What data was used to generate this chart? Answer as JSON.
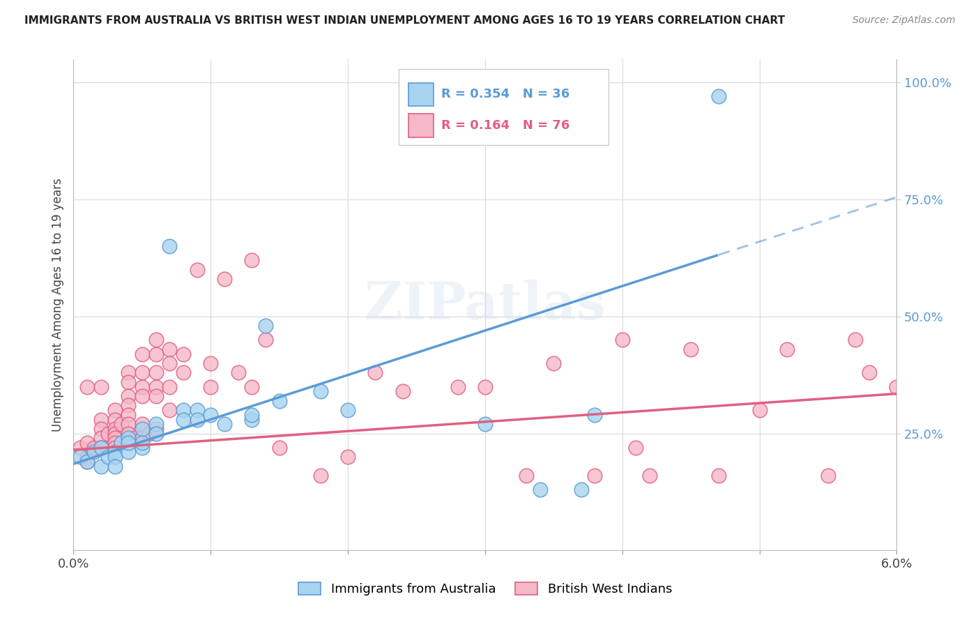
{
  "title": "IMMIGRANTS FROM AUSTRALIA VS BRITISH WEST INDIAN UNEMPLOYMENT AMONG AGES 16 TO 19 YEARS CORRELATION CHART",
  "source": "Source: ZipAtlas.com",
  "ylabel": "Unemployment Among Ages 16 to 19 years",
  "xlim": [
    0.0,
    0.06
  ],
  "ylim": [
    0.0,
    1.05
  ],
  "xtick_positions": [
    0.0,
    0.01,
    0.02,
    0.03,
    0.04,
    0.05,
    0.06
  ],
  "xticklabels": [
    "0.0%",
    "",
    "",
    "",
    "",
    "",
    "6.0%"
  ],
  "ytick_right_labels": [
    "25.0%",
    "50.0%",
    "75.0%",
    "100.0%"
  ],
  "ytick_right_values": [
    0.25,
    0.5,
    0.75,
    1.0
  ],
  "R_blue": 0.354,
  "N_blue": 36,
  "R_pink": 0.164,
  "N_pink": 76,
  "legend_label_blue": "Immigrants from Australia",
  "legend_label_pink": "British West Indians",
  "color_blue": "#a8d4f0",
  "color_pink": "#f5b8c8",
  "edge_color_blue": "#5b9bd5",
  "edge_color_pink": "#e06080",
  "line_color_blue": "#5b9bd5",
  "line_color_pink": "#e06080",
  "watermark": "ZIPatlas",
  "blue_intercept": 0.185,
  "blue_slope": 9.5,
  "pink_intercept": 0.215,
  "pink_slope": 2.0,
  "blue_x": [
    0.0005,
    0.001,
    0.0015,
    0.002,
    0.002,
    0.0025,
    0.003,
    0.003,
    0.003,
    0.0035,
    0.004,
    0.004,
    0.004,
    0.005,
    0.005,
    0.005,
    0.006,
    0.006,
    0.007,
    0.008,
    0.008,
    0.009,
    0.009,
    0.01,
    0.011,
    0.013,
    0.013,
    0.014,
    0.015,
    0.018,
    0.02,
    0.03,
    0.034,
    0.037,
    0.038,
    0.047
  ],
  "blue_y": [
    0.2,
    0.19,
    0.21,
    0.22,
    0.18,
    0.2,
    0.21,
    0.2,
    0.18,
    0.23,
    0.24,
    0.21,
    0.23,
    0.26,
    0.22,
    0.23,
    0.27,
    0.25,
    0.65,
    0.3,
    0.28,
    0.3,
    0.28,
    0.29,
    0.27,
    0.28,
    0.29,
    0.48,
    0.32,
    0.34,
    0.3,
    0.27,
    0.13,
    0.13,
    0.29,
    0.97
  ],
  "pink_x": [
    0.0005,
    0.001,
    0.001,
    0.001,
    0.001,
    0.0015,
    0.002,
    0.002,
    0.002,
    0.002,
    0.002,
    0.0025,
    0.003,
    0.003,
    0.003,
    0.003,
    0.003,
    0.003,
    0.003,
    0.0035,
    0.004,
    0.004,
    0.004,
    0.004,
    0.004,
    0.004,
    0.004,
    0.0045,
    0.005,
    0.005,
    0.005,
    0.005,
    0.005,
    0.005,
    0.0055,
    0.006,
    0.006,
    0.006,
    0.006,
    0.006,
    0.006,
    0.007,
    0.007,
    0.007,
    0.007,
    0.008,
    0.008,
    0.009,
    0.01,
    0.01,
    0.011,
    0.012,
    0.013,
    0.013,
    0.014,
    0.015,
    0.018,
    0.02,
    0.022,
    0.024,
    0.028,
    0.033,
    0.038,
    0.04,
    0.042,
    0.045,
    0.047,
    0.05,
    0.052,
    0.055,
    0.057,
    0.058,
    0.06,
    0.041,
    0.035,
    0.03
  ],
  "pink_y": [
    0.22,
    0.35,
    0.2,
    0.19,
    0.23,
    0.22,
    0.35,
    0.28,
    0.26,
    0.24,
    0.22,
    0.25,
    0.3,
    0.28,
    0.26,
    0.25,
    0.24,
    0.23,
    0.22,
    0.27,
    0.38,
    0.36,
    0.33,
    0.31,
    0.29,
    0.27,
    0.25,
    0.24,
    0.42,
    0.38,
    0.35,
    0.33,
    0.27,
    0.24,
    0.25,
    0.45,
    0.42,
    0.38,
    0.35,
    0.33,
    0.26,
    0.43,
    0.4,
    0.35,
    0.3,
    0.42,
    0.38,
    0.6,
    0.4,
    0.35,
    0.58,
    0.38,
    0.62,
    0.35,
    0.45,
    0.22,
    0.16,
    0.2,
    0.38,
    0.34,
    0.35,
    0.16,
    0.16,
    0.45,
    0.16,
    0.43,
    0.16,
    0.3,
    0.43,
    0.16,
    0.45,
    0.38,
    0.35,
    0.22,
    0.4,
    0.35
  ]
}
